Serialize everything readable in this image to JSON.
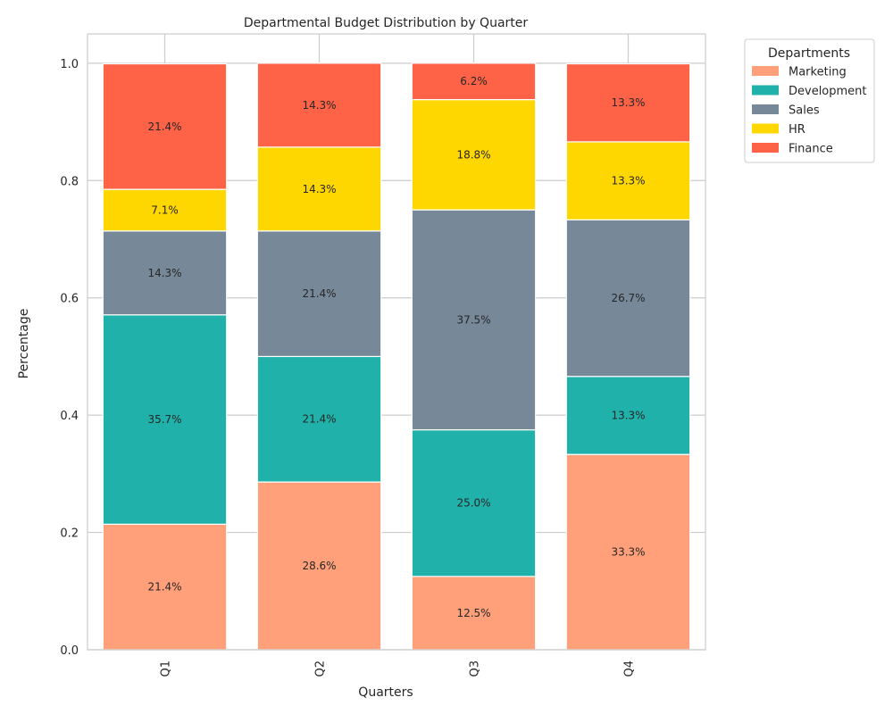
{
  "chart_data": {
    "type": "bar",
    "stacked": true,
    "title": "Departmental Budget Distribution by Quarter",
    "xlabel": "Quarters",
    "ylabel": "Percentage",
    "categories": [
      "Q1",
      "Q2",
      "Q3",
      "Q4"
    ],
    "ylim": [
      0,
      1.05
    ],
    "yticks": [
      "0.0",
      "0.2",
      "0.4",
      "0.6",
      "0.8",
      "1.0"
    ],
    "grid": true,
    "legend": {
      "title": "Departments",
      "placement": "outside-top-right"
    },
    "series": [
      {
        "name": "Marketing",
        "color": "#FFA07A",
        "values": [
          0.214,
          0.286,
          0.125,
          0.333
        ],
        "labels": [
          "21.4%",
          "28.6%",
          "12.5%",
          "33.3%"
        ]
      },
      {
        "name": "Development",
        "color": "#20B2AA",
        "values": [
          0.357,
          0.214,
          0.25,
          0.133
        ],
        "labels": [
          "35.7%",
          "21.4%",
          "25.0%",
          "13.3%"
        ]
      },
      {
        "name": "Sales",
        "color": "#778899",
        "values": [
          0.143,
          0.214,
          0.375,
          0.267
        ],
        "labels": [
          "14.3%",
          "21.4%",
          "37.5%",
          "26.7%"
        ]
      },
      {
        "name": "HR",
        "color": "#FFD700",
        "values": [
          0.071,
          0.143,
          0.188,
          0.133
        ],
        "labels": [
          "7.1%",
          "14.3%",
          "18.8%",
          "13.3%"
        ]
      },
      {
        "name": "Finance",
        "color": "#FF6347",
        "values": [
          0.214,
          0.143,
          0.062,
          0.133
        ],
        "labels": [
          "21.4%",
          "14.3%",
          "6.2%",
          "13.3%"
        ]
      }
    ]
  }
}
